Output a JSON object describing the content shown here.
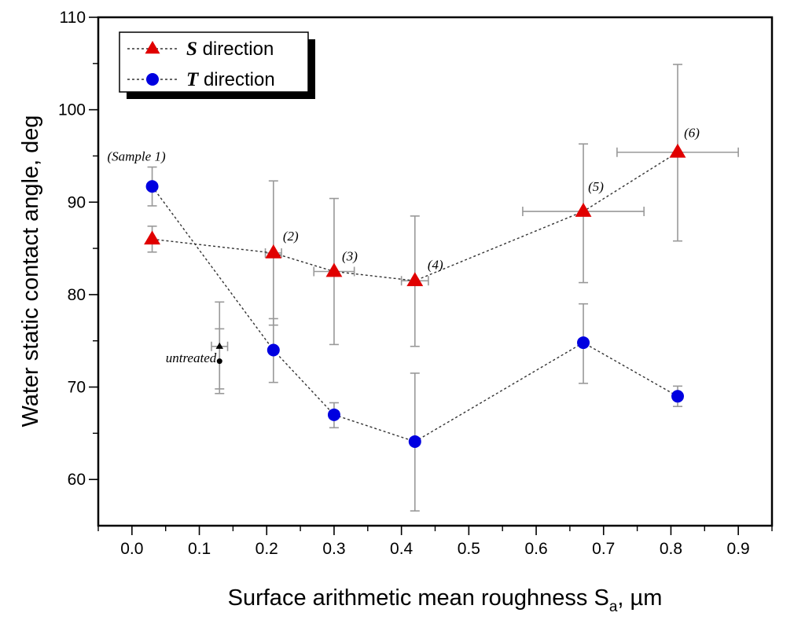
{
  "chart_data": {
    "type": "scatter",
    "xlabel_main": "Surface arithmetic mean roughness S",
    "xlabel_sub": "a",
    "xlabel_unit": ", µm",
    "ylabel": "Water static contact angle, deg",
    "xlim": [
      -0.05,
      0.95
    ],
    "ylim": [
      55,
      110
    ],
    "x_ticks": [
      "0.0",
      "0.1",
      "0.2",
      "0.3",
      "0.4",
      "0.5",
      "0.6",
      "0.7",
      "0.8",
      "0.9"
    ],
    "y_ticks": [
      "60",
      "70",
      "80",
      "90",
      "100",
      "110"
    ],
    "legend": {
      "position": "top-left",
      "entries": [
        {
          "letter": "S",
          "text": " direction",
          "color": "#e00000",
          "marker": "triangle"
        },
        {
          "letter": "T",
          "text": " direction",
          "color": "#0000e0",
          "marker": "circle"
        }
      ]
    },
    "series": [
      {
        "name": "S direction",
        "color": "#e00000",
        "marker": "triangle",
        "points": [
          {
            "x": 0.03,
            "y": 86.0,
            "yerr_low": 84.6,
            "yerr_high": 87.4,
            "xerr": 0.0
          },
          {
            "x": 0.21,
            "y": 84.5,
            "yerr_low": 76.7,
            "yerr_high": 92.3,
            "xerr": 0.012
          },
          {
            "x": 0.3,
            "y": 82.5,
            "yerr_low": 74.6,
            "yerr_high": 90.4,
            "xerr": 0.03
          },
          {
            "x": 0.42,
            "y": 81.5,
            "yerr_low": 74.4,
            "yerr_high": 88.5,
            "xerr": 0.02
          },
          {
            "x": 0.67,
            "y": 89.0,
            "yerr_low": 81.3,
            "yerr_high": 96.3,
            "xerr": 0.09
          },
          {
            "x": 0.81,
            "y": 95.4,
            "yerr_low": 85.8,
            "yerr_high": 104.9,
            "xerr": 0.09
          }
        ]
      },
      {
        "name": "T direction",
        "color": "#0000e0",
        "marker": "circle",
        "points": [
          {
            "x": 0.03,
            "y": 91.7,
            "yerr_low": 89.6,
            "yerr_high": 93.8,
            "xerr": 0.0
          },
          {
            "x": 0.21,
            "y": 74.0,
            "yerr_low": 70.5,
            "yerr_high": 77.4,
            "xerr": 0.0
          },
          {
            "x": 0.3,
            "y": 67.0,
            "yerr_low": 65.6,
            "yerr_high": 68.3,
            "xerr": 0.0
          },
          {
            "x": 0.42,
            "y": 64.1,
            "yerr_low": 56.6,
            "yerr_high": 71.5,
            "xerr": 0.0
          },
          {
            "x": 0.67,
            "y": 74.8,
            "yerr_low": 70.4,
            "yerr_high": 79.0,
            "xerr": 0.0
          },
          {
            "x": 0.81,
            "y": 69.0,
            "yerr_low": 67.9,
            "yerr_high": 70.1,
            "xerr": 0.0
          }
        ]
      }
    ],
    "untreated": {
      "label": "untreated",
      "x": 0.13,
      "xerr": 0.012,
      "s_value": 74.4,
      "s_err": [
        69.8,
        79.2
      ],
      "t_value": 72.8,
      "t_err": [
        69.3,
        76.3
      ]
    },
    "annotations": [
      {
        "text": "(Sample 1)",
        "x": 0.03,
        "y": 91.7
      },
      {
        "text": "(2)",
        "x": 0.21,
        "y": 84.5
      },
      {
        "text": "(3)",
        "x": 0.3,
        "y": 82.5
      },
      {
        "text": "(4)",
        "x": 0.42,
        "y": 81.5
      },
      {
        "text": "(5)",
        "x": 0.67,
        "y": 89.0
      },
      {
        "text": "(6)",
        "x": 0.81,
        "y": 95.4
      }
    ]
  }
}
